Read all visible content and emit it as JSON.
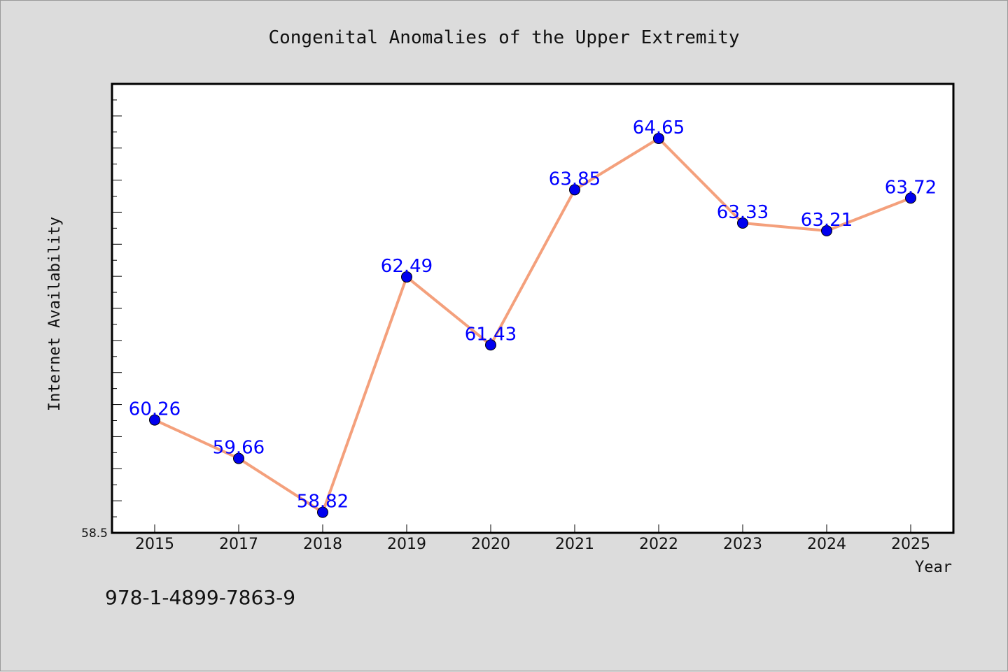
{
  "chart_data": {
    "type": "line",
    "title": "Congenital Anomalies of the Upper Extremity",
    "xlabel": "Year",
    "ylabel": "Internet Availability",
    "categories": [
      "2015",
      "2017",
      "2018",
      "2019",
      "2020",
      "2021",
      "2022",
      "2023",
      "2024",
      "2025"
    ],
    "series": [
      {
        "values": [
          60.26,
          59.66,
          58.82,
          62.49,
          61.43,
          63.85,
          64.65,
          63.33,
          63.21,
          63.72
        ],
        "line_color": "#f4a07c",
        "marker_color": "#0000ee",
        "label_color": "#0000ff"
      }
    ],
    "ylim": [
      58.5,
      65.5
    ],
    "yticks_labeled": [
      "58.5"
    ],
    "data_labels": [
      "60.26",
      "59.66",
      "58.82",
      "62.49",
      "61.43",
      "63.85",
      "64.65",
      "63.33",
      "63.21",
      "63.72"
    ],
    "grid": false,
    "legend": "none"
  },
  "footer": {
    "isbn": "978-1-4899-7863-9"
  },
  "colors": {
    "background": "#dcdcdc",
    "plot_background": "#ffffff",
    "axis": "#000000"
  }
}
